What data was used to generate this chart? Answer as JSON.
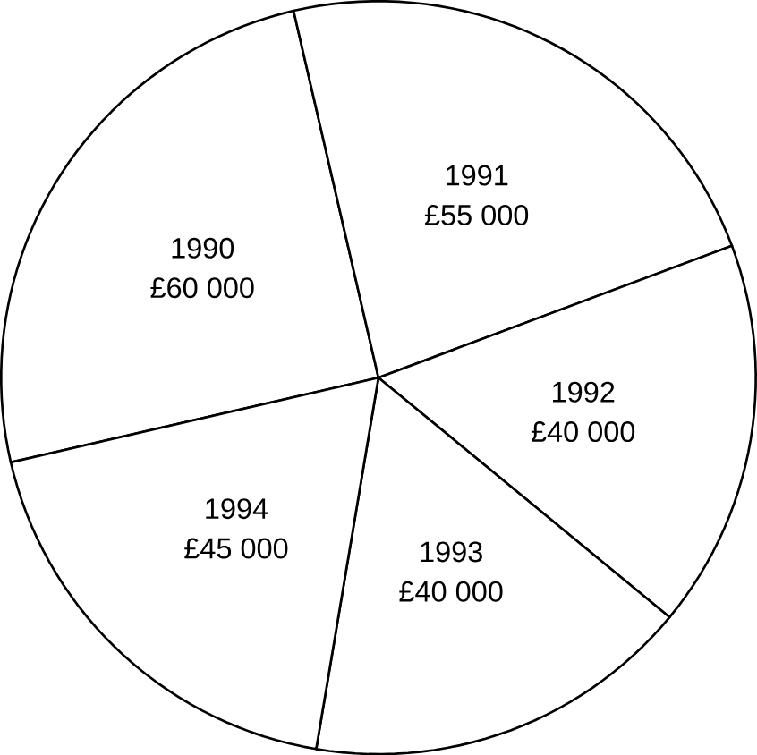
{
  "chart_data": {
    "type": "pie",
    "categories": [
      "1990",
      "1991",
      "1992",
      "1993",
      "1994"
    ],
    "values": [
      60000,
      55000,
      40000,
      40000,
      45000
    ],
    "value_labels": [
      "£60 000",
      "£55 000",
      "£40 000",
      "£40 000",
      "£45 000"
    ],
    "colors": [
      "#ffffff",
      "#ffffff",
      "#ffffff",
      "#ffffff",
      "#ffffff"
    ]
  }
}
